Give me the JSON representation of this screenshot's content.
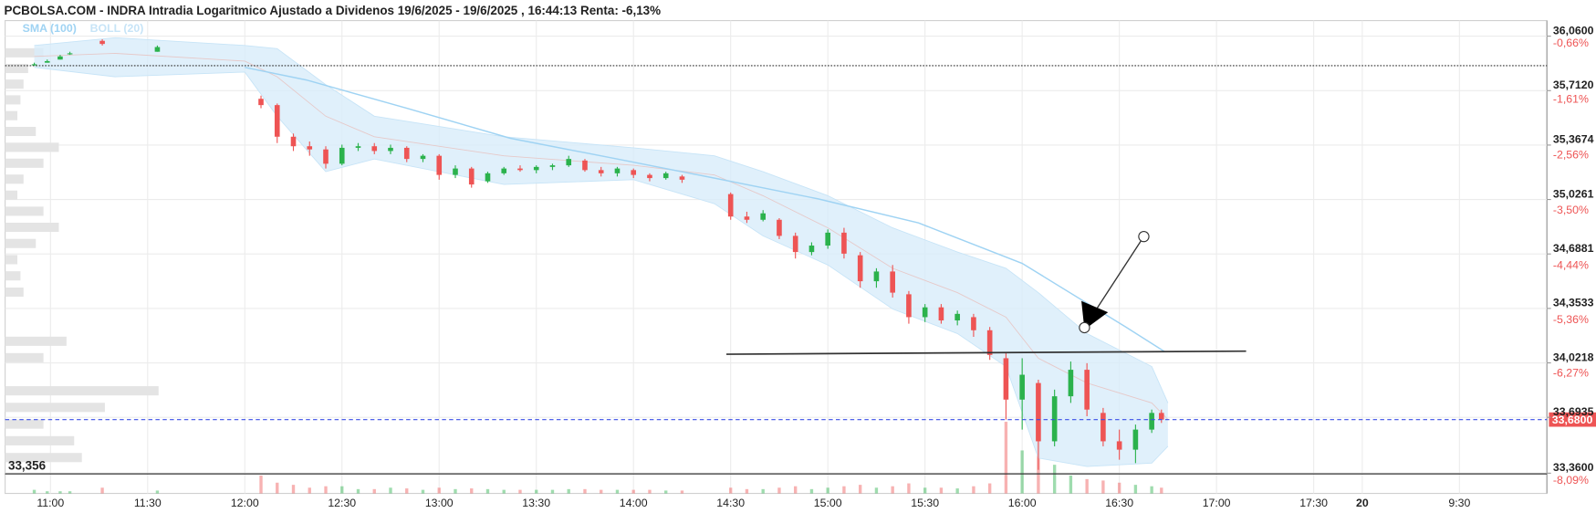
{
  "chart_data": {
    "type": "candlestick",
    "title": "PCBOLSA.COM - INDRA Intradia Logaritmico Ajustado a Dividenos 19/6/2025 - 19/6/2025 , 16:44:13 Renta: -6,13%",
    "x": [
      655,
      659,
      663,
      666,
      676,
      693,
      725,
      730,
      735,
      740,
      745,
      750,
      755,
      760,
      765,
      770,
      775,
      780,
      785,
      790,
      795,
      800,
      805,
      810,
      815,
      820,
      825,
      830,
      835,
      840,
      845,
      850,
      855,
      870,
      875,
      880,
      885,
      890,
      895,
      900,
      905,
      910,
      915,
      920,
      925,
      930,
      935,
      940,
      945,
      950,
      955,
      960,
      965,
      970,
      975,
      980,
      985,
      990,
      995,
      1000,
      1003
    ],
    "open": [
      35.88,
      35.89,
      35.91,
      35.95,
      36.03,
      35.96,
      35.66,
      35.62,
      35.42,
      35.36,
      35.34,
      35.25,
      35.35,
      35.36,
      35.33,
      35.35,
      35.28,
      35.3,
      35.18,
      35.22,
      35.14,
      35.19,
      35.22,
      35.21,
      35.23,
      35.24,
      35.27,
      35.21,
      35.19,
      35.21,
      35.18,
      35.16,
      35.17,
      35.06,
      34.92,
      34.9,
      34.9,
      34.8,
      34.7,
      34.74,
      34.82,
      34.68,
      34.52,
      34.58,
      34.44,
      34.3,
      34.36,
      34.28,
      34.3,
      34.22,
      34.05,
      33.8,
      33.9,
      33.55,
      33.82,
      33.98,
      33.72,
      33.55,
      33.5,
      33.62,
      33.72
    ],
    "high": [
      35.89,
      35.91,
      35.94,
      35.96,
      36.04,
      36.0,
      35.68,
      35.63,
      35.44,
      35.39,
      35.36,
      35.37,
      35.38,
      35.38,
      35.37,
      35.36,
      35.31,
      35.31,
      35.24,
      35.23,
      35.2,
      35.23,
      35.24,
      35.24,
      35.25,
      35.3,
      35.28,
      35.23,
      35.23,
      35.22,
      35.19,
      35.2,
      35.18,
      35.07,
      34.95,
      34.96,
      34.91,
      34.82,
      34.76,
      34.84,
      34.85,
      34.7,
      34.6,
      34.62,
      34.46,
      34.38,
      34.38,
      34.34,
      34.32,
      34.24,
      34.08,
      34.05,
      33.92,
      33.86,
      34.03,
      34.02,
      33.75,
      33.62,
      33.65,
      33.74,
      33.74
    ],
    "low": [
      35.87,
      35.89,
      35.91,
      35.94,
      36.0,
      35.96,
      35.6,
      35.38,
      35.33,
      35.3,
      35.22,
      35.24,
      35.33,
      35.31,
      35.31,
      35.26,
      35.26,
      35.15,
      35.16,
      35.1,
      35.13,
      35.18,
      35.2,
      35.19,
      35.21,
      35.23,
      35.2,
      35.17,
      35.17,
      35.16,
      35.14,
      35.15,
      35.13,
      34.9,
      34.88,
      34.89,
      34.78,
      34.66,
      34.68,
      34.72,
      34.66,
      34.48,
      34.48,
      34.42,
      34.26,
      34.27,
      34.26,
      34.25,
      34.18,
      34.04,
      33.68,
      33.62,
      33.38,
      33.52,
      33.78,
      33.7,
      33.52,
      33.44,
      33.42,
      33.6,
      33.66
    ],
    "close": [
      35.88,
      35.9,
      35.93,
      35.95,
      36.01,
      35.99,
      35.62,
      35.42,
      35.36,
      35.34,
      35.25,
      35.35,
      35.36,
      35.33,
      35.35,
      35.28,
      35.3,
      35.18,
      35.22,
      35.12,
      35.19,
      35.22,
      35.21,
      35.23,
      35.24,
      35.28,
      35.21,
      35.19,
      35.22,
      35.18,
      35.16,
      35.19,
      35.15,
      34.92,
      34.9,
      34.94,
      34.8,
      34.7,
      34.74,
      34.82,
      34.69,
      34.52,
      34.58,
      34.45,
      34.3,
      34.36,
      34.28,
      34.32,
      34.22,
      34.07,
      33.8,
      33.95,
      33.55,
      33.82,
      33.98,
      33.74,
      33.55,
      33.5,
      33.62,
      33.72,
      33.68
    ],
    "colors": {
      "up": "#2bb24c",
      "down": "#ee5454"
    },
    "log_scale": true,
    "grid": true,
    "ylim": [
      33.24,
      36.16
    ],
    "yticks": [
      {
        "value": 36.06,
        "label": "36,0600"
      },
      {
        "value": 35.712,
        "label": "35,7120"
      },
      {
        "value": 35.3674,
        "label": "35,3674"
      },
      {
        "value": 35.0261,
        "label": "35,0261"
      },
      {
        "value": 34.6881,
        "label": "34,6881"
      },
      {
        "value": 34.3533,
        "label": "34,3533"
      },
      {
        "value": 34.0218,
        "label": "34,0218"
      },
      {
        "value": 33.6935,
        "label": "33,6935"
      },
      {
        "value": 33.36,
        "label": "33,3600"
      }
    ],
    "y2lim": [
      -8.43,
      -0.39
    ],
    "y2ticks": [
      {
        "value": -0.66,
        "label": "-0,66%"
      },
      {
        "value": -1.61,
        "label": "-1,61%"
      },
      {
        "value": -2.56,
        "label": "-2,56%"
      },
      {
        "value": -3.5,
        "label": "-3,50%"
      },
      {
        "value": -4.44,
        "label": "-4,44%"
      },
      {
        "value": -5.36,
        "label": "-5,36%"
      },
      {
        "value": -6.27,
        "label": "-6,27%"
      },
      {
        "value": -8.09,
        "label": "-8,09%"
      }
    ],
    "xlim": [
      646,
      1122
    ],
    "xticks": [
      {
        "value": 660,
        "label": "11:00"
      },
      {
        "value": 690,
        "label": "11:30"
      },
      {
        "value": 720,
        "label": "12:00"
      },
      {
        "value": 750,
        "label": "12:30"
      },
      {
        "value": 780,
        "label": "13:00"
      },
      {
        "value": 810,
        "label": "13:30"
      },
      {
        "value": 840,
        "label": "14:00"
      },
      {
        "value": 870,
        "label": "14:30"
      },
      {
        "value": 900,
        "label": "15:00"
      },
      {
        "value": 930,
        "label": "15:30"
      },
      {
        "value": 960,
        "label": "16:00"
      },
      {
        "value": 990,
        "label": "16:30"
      },
      {
        "value": 1020,
        "label": "17:00"
      },
      {
        "value": 1050,
        "label": "17:30"
      },
      {
        "value": 1065,
        "label": "20",
        "bold": true
      },
      {
        "value": 1095,
        "label": "9:30"
      }
    ],
    "indicators": [
      {
        "name": "SMA (100)",
        "color": "#9fd3f3",
        "x": [
          720,
          739,
          770,
          802,
          835,
          865,
          897,
          928,
          960,
          992,
          1004
        ],
        "values": [
          35.86,
          35.78,
          35.6,
          35.41,
          35.28,
          35.16,
          35.03,
          34.88,
          34.63,
          34.24,
          34.09
        ]
      },
      {
        "name": "BOLL (20)",
        "color": "#c7e4f7",
        "fill": "#d8ecfa",
        "x": [
          655,
          680,
          720,
          730,
          745,
          760,
          800,
          840,
          865,
          880,
          900,
          920,
          940,
          955,
          965,
          980,
          1000,
          1005
        ],
        "upper": [
          36.0,
          36.05,
          36.0,
          35.98,
          35.75,
          35.55,
          35.42,
          35.35,
          35.3,
          35.2,
          35.05,
          34.85,
          34.7,
          34.6,
          34.45,
          34.2,
          34.0,
          33.78
        ],
        "middle": [
          35.93,
          35.95,
          35.9,
          35.8,
          35.55,
          35.42,
          35.3,
          35.24,
          35.18,
          35.05,
          34.85,
          34.6,
          34.45,
          34.3,
          34.05,
          33.9,
          33.78,
          33.68
        ],
        "lower": [
          35.86,
          35.8,
          35.83,
          35.55,
          35.2,
          35.28,
          35.12,
          35.15,
          35.0,
          34.8,
          34.62,
          34.35,
          34.2,
          34.0,
          33.45,
          33.4,
          33.42,
          33.52
        ]
      }
    ],
    "volume": {
      "ylim": [
        0,
        100
      ],
      "values": [
        5,
        3,
        3,
        3,
        8,
        4,
        25,
        15,
        12,
        8,
        10,
        10,
        6,
        6,
        8,
        7,
        5,
        8,
        6,
        7,
        6,
        5,
        5,
        5,
        5,
        6,
        6,
        5,
        5,
        5,
        5,
        4,
        4,
        8,
        6,
        6,
        8,
        10,
        6,
        8,
        10,
        12,
        8,
        10,
        14,
        8,
        8,
        7,
        10,
        14,
        100,
        60,
        90,
        40,
        25,
        20,
        18,
        15,
        12,
        10,
        8
      ]
    },
    "volume_profile": {
      "color": "#e4e4e4",
      "xlim": [
        0,
        100
      ],
      "prices": [
        35.95,
        35.85,
        35.75,
        35.65,
        35.55,
        35.45,
        35.35,
        35.25,
        35.15,
        35.05,
        34.95,
        34.85,
        34.75,
        34.65,
        34.55,
        34.45,
        34.15,
        34.05,
        33.85,
        33.75,
        33.65,
        33.55,
        33.45
      ],
      "values": [
        25,
        15,
        12,
        10,
        8,
        20,
        35,
        25,
        12,
        8,
        25,
        35,
        20,
        8,
        10,
        12,
        40,
        25,
        100,
        65,
        25,
        45,
        50
      ]
    },
    "price_levels": [
      {
        "value": 33.356,
        "label": "33,356",
        "color": "#333333"
      }
    ],
    "last_price": {
      "value": 33.68,
      "label": "33,6800",
      "color": "#ee5454",
      "line_color": "#3a4ee8"
    }
  }
}
